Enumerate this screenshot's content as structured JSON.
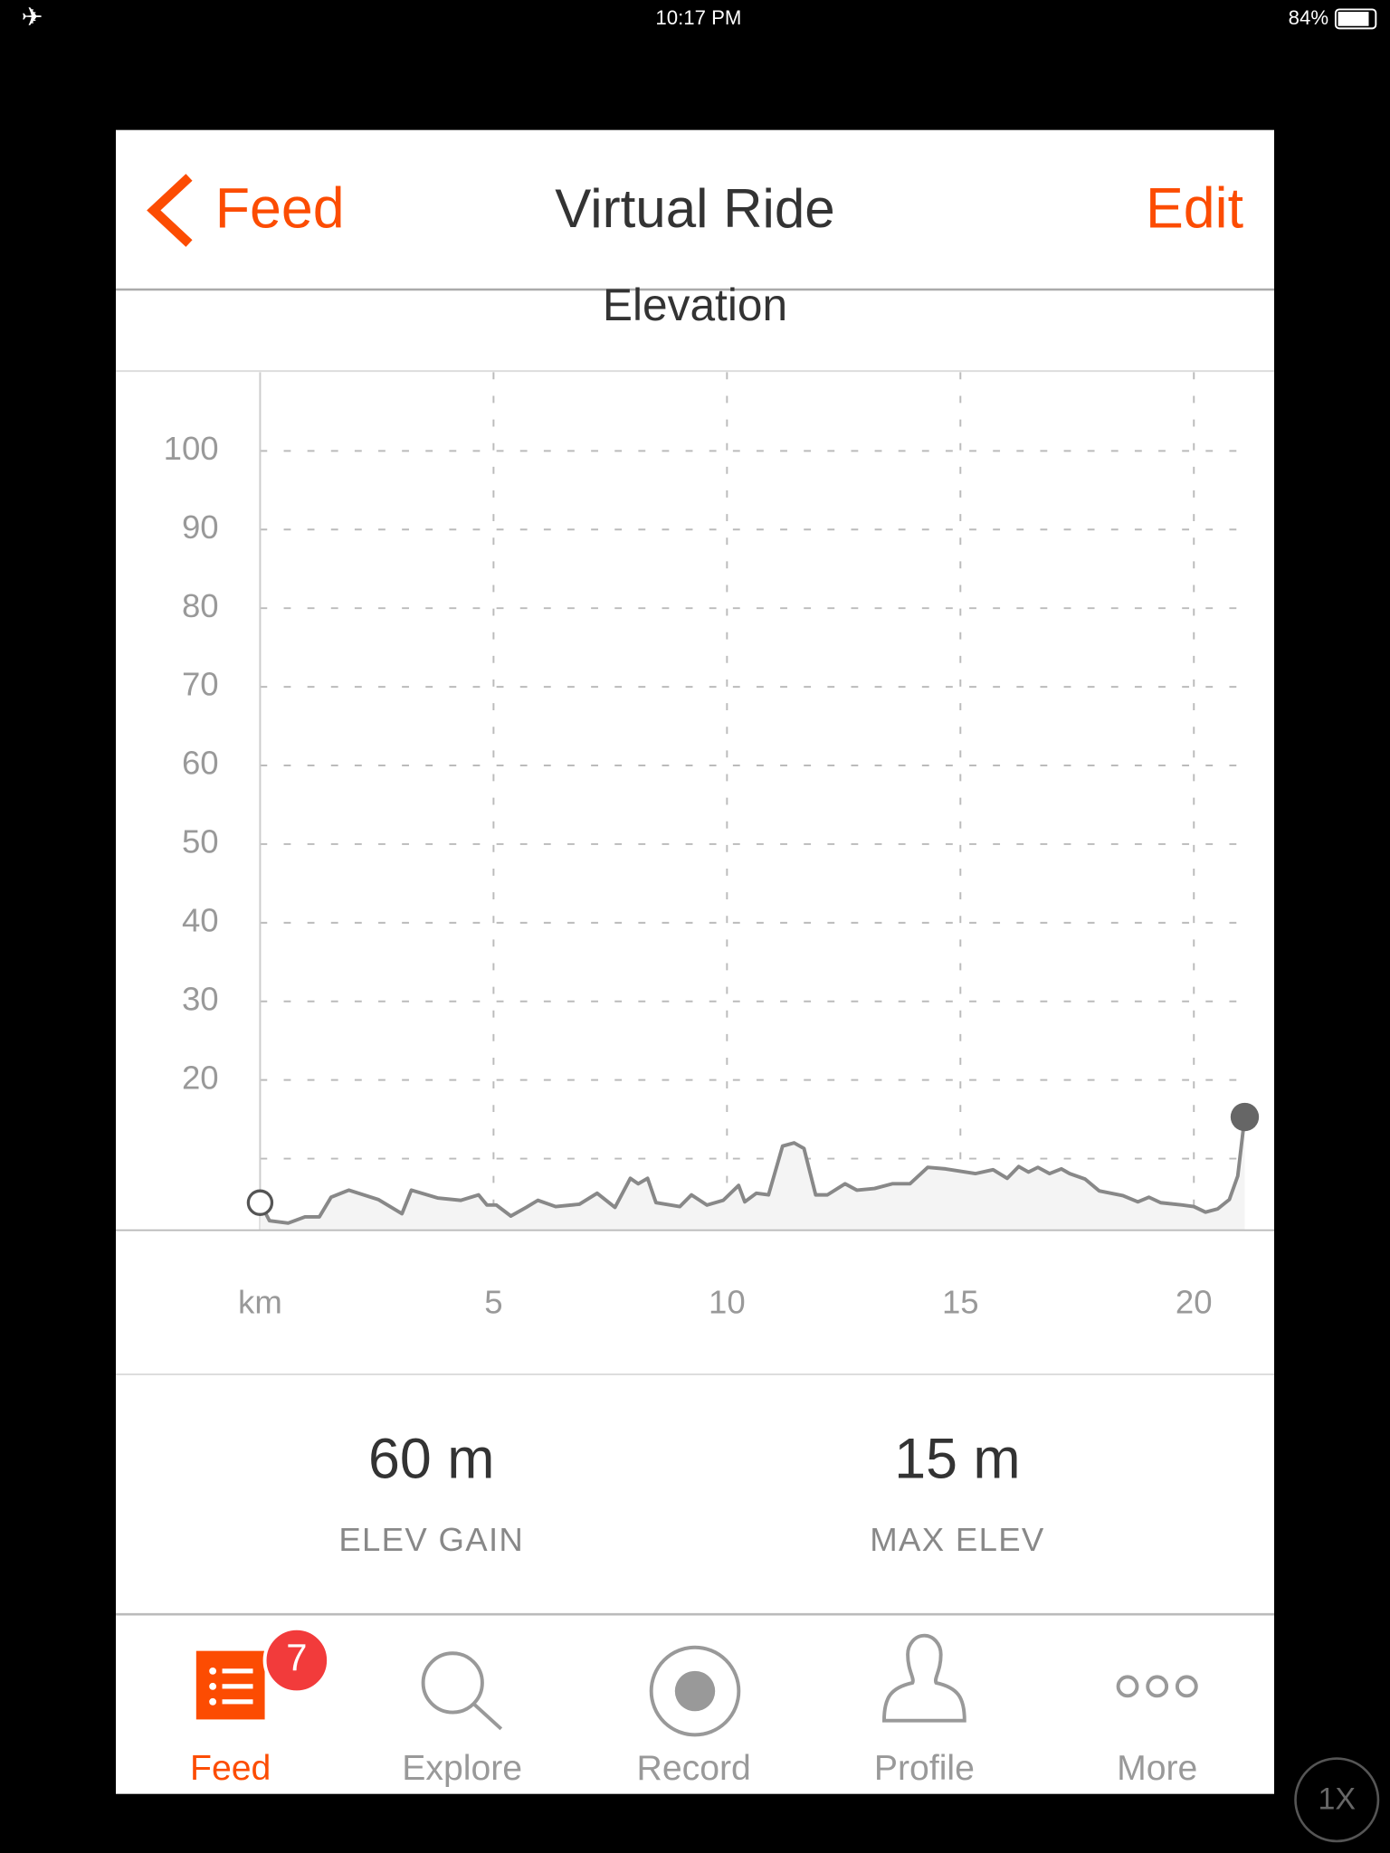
{
  "status_bar": {
    "time": "10:17 PM",
    "battery": "84%"
  },
  "nav": {
    "back": "Feed",
    "title": "Virtual Ride",
    "action": "Edit"
  },
  "chart_data": {
    "type": "line",
    "title": "Elevation",
    "x": [
      0,
      0.2,
      0.6,
      0.96,
      1.27,
      1.52,
      1.9,
      2.53,
      3.04,
      3.24,
      3.8,
      4.3,
      4.68,
      4.86,
      5.06,
      5.37,
      5.7,
      5.95,
      6.33,
      6.84,
      7.22,
      7.6,
      7.93,
      8.1,
      8.3,
      8.48,
      8.99,
      9.24,
      9.57,
      9.92,
      10.25,
      10.38,
      10.63,
      10.89,
      11.19,
      11.44,
      11.65,
      11.9,
      12.15,
      12.53,
      12.78,
      13.16,
      13.54,
      13.92,
      14.3,
      14.68,
      15.32,
      15.7,
      16.0,
      16.25,
      16.46,
      16.66,
      16.91,
      17.16,
      17.34,
      17.67,
      17.97,
      18.48,
      18.8,
      19.04,
      19.29,
      19.75,
      20.0,
      20.25,
      20.51,
      20.76,
      20.94,
      21.09
    ],
    "series": [
      {
        "color": "#888888",
        "values": [
          4.4,
          2.1,
          1.8,
          2.6,
          2.6,
          5.1,
          6.0,
          4.8,
          3.0,
          6.0,
          5.0,
          4.7,
          5.4,
          4.1,
          4.1,
          2.7,
          3.8,
          4.7,
          3.9,
          4.2,
          5.6,
          3.8,
          7.5,
          6.8,
          7.5,
          4.4,
          3.9,
          5.4,
          4.1,
          4.7,
          6.6,
          4.5,
          5.6,
          5.4,
          11.6,
          12.0,
          11.3,
          5.4,
          5.4,
          6.8,
          6.0,
          6.2,
          6.8,
          6.8,
          8.9,
          8.7,
          8.1,
          8.6,
          7.5,
          9.0,
          8.3,
          8.9,
          8.1,
          8.7,
          8.1,
          7.4,
          5.9,
          5.3,
          4.5,
          5.1,
          4.4,
          4.1,
          3.9,
          3.2,
          3.6,
          4.8,
          7.8,
          15.3
        ]
      }
    ],
    "xlim": [
      -3.09,
      21.72
    ],
    "ylim": [
      0.9,
      110
    ],
    "xticks": [
      {
        "value": 0,
        "label": "km"
      },
      5,
      10,
      15,
      20
    ],
    "yticks": [
      {
        "value": 10,
        "label": null
      },
      20,
      30,
      40,
      50,
      60,
      70,
      80,
      90,
      100
    ],
    "grid": true
  },
  "stats": [
    {
      "value": "60 m",
      "label": "ELEV GAIN"
    },
    {
      "value": "15 m",
      "label": "MAX ELEV"
    }
  ],
  "tab_bar": {
    "items": [
      "Feed",
      "Explore",
      "Record",
      "Profile",
      "More"
    ],
    "badge": "7"
  },
  "zoom": "1X"
}
